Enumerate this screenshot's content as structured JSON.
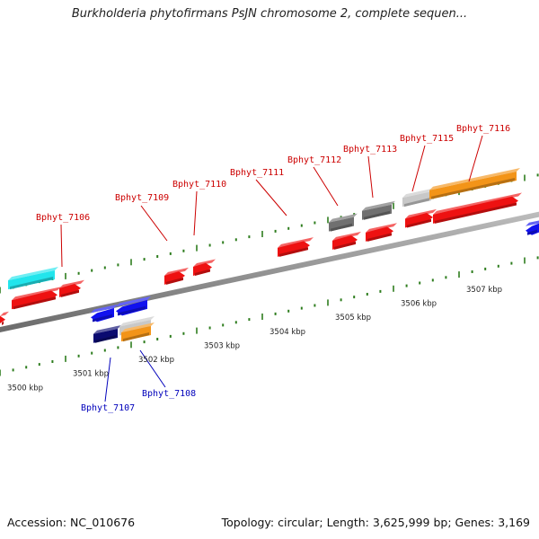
{
  "title": "Burkholderia phytofirmans PsJN chromosome 2, complete sequen...",
  "footer": {
    "accession": "Accession: NC_010676",
    "summary": "Topology: circular; Length: 3,625,999 bp; Genes: 3,169"
  },
  "colors": {
    "forward_label": "#cc0000",
    "reverse_label": "#0000bb",
    "tick": "#2e7d1e",
    "axis": "#888888"
  },
  "scale_labels": [
    {
      "kbp": 3500,
      "text": "3500 kbp"
    },
    {
      "kbp": 3501,
      "text": "3501 kbp"
    },
    {
      "kbp": 3502,
      "text": "3502 kbp"
    },
    {
      "kbp": 3503,
      "text": "3503 kbp"
    },
    {
      "kbp": 3504,
      "text": "3504 kbp"
    },
    {
      "kbp": 3505,
      "text": "3505 kbp"
    },
    {
      "kbp": 3506,
      "text": "3506 kbp"
    },
    {
      "kbp": 3507,
      "text": "3507 kbp"
    }
  ],
  "gene_labels": [
    {
      "text": "Bphyt_7106",
      "strand": "forward"
    },
    {
      "text": "Bphyt_7109",
      "strand": "forward"
    },
    {
      "text": "Bphyt_7110",
      "strand": "forward"
    },
    {
      "text": "Bphyt_7111",
      "strand": "forward"
    },
    {
      "text": "Bphyt_7112",
      "strand": "forward"
    },
    {
      "text": "Bphyt_7113",
      "strand": "forward"
    },
    {
      "text": "Bphyt_7115",
      "strand": "forward"
    },
    {
      "text": "Bphyt_7116",
      "strand": "forward"
    },
    {
      "text": "Bphyt_7107",
      "strand": "reverse"
    },
    {
      "text": "Bphyt_7108",
      "strand": "reverse"
    }
  ],
  "features": [
    {
      "name": "feature-cyan",
      "color": "#22e5ec"
    },
    {
      "name": "feature-red",
      "color": "#ee1111"
    },
    {
      "name": "feature-blue",
      "color": "#1111ee"
    },
    {
      "name": "feature-navy",
      "color": "#0a0a70"
    },
    {
      "name": "feature-gray",
      "color": "#707070"
    },
    {
      "name": "feature-lightgray",
      "color": "#c8c8c8"
    },
    {
      "name": "feature-orange",
      "color": "#f39418"
    }
  ]
}
